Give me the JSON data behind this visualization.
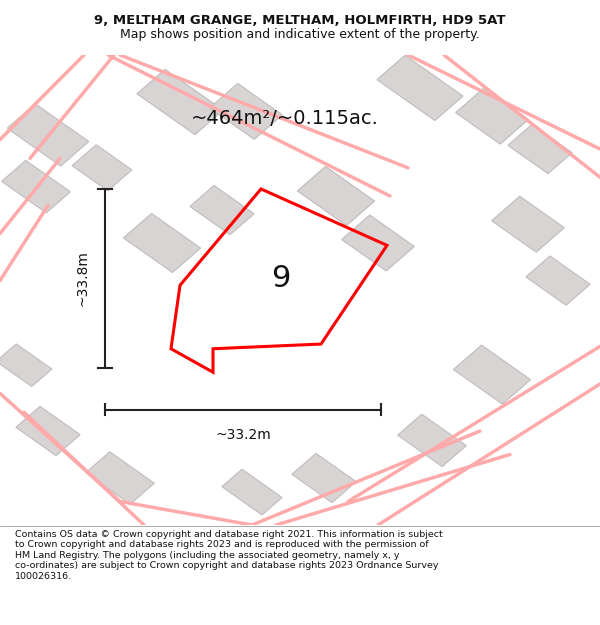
{
  "title_line1": "9, MELTHAM GRANGE, MELTHAM, HOLMFIRTH, HD9 5AT",
  "title_line2": "Map shows position and indicative extent of the property.",
  "footer_wrapped": "Contains OS data © Crown copyright and database right 2021. This information is subject\nto Crown copyright and database rights 2023 and is reproduced with the permission of\nHM Land Registry. The polygons (including the associated geometry, namely x, y\nco-ordinates) are subject to Crown copyright and database rights 2023 Ordnance Survey\n100026316.",
  "area_label": "~464m²/~0.115ac.",
  "width_label": "~33.2m",
  "height_label": "~33.8m",
  "plot_number": "9",
  "map_bg": "#f2f0f0",
  "plot_color": "#ff0000",
  "dim_line_color": "#222222",
  "title_bg": "#ffffff",
  "footer_bg": "#ffffff",
  "road_color": "#ffaaaa",
  "building_color": "#d8d4d4",
  "building_edge": "#c0bcbc"
}
